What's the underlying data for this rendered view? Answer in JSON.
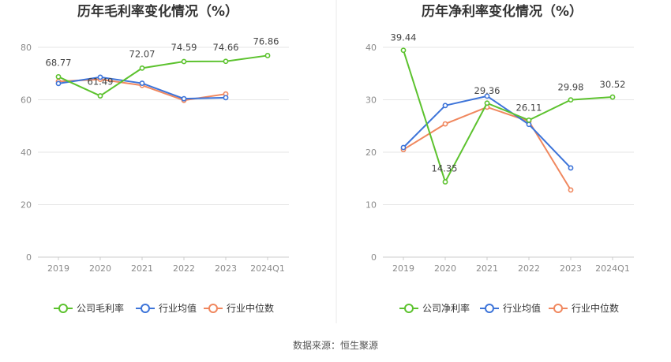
{
  "colors": {
    "company": "#5CC22E",
    "industry_avg": "#3D74D9",
    "industry_median": "#F0875E",
    "grid": "#E6E6E6",
    "axis": "#CCCCCC",
    "divider": "#E8E8E8"
  },
  "legend": {
    "company_gross": "公司毛利率",
    "company_net": "公司净利率",
    "industry_avg": "行业均值",
    "industry_median": "行业中位数"
  },
  "source": "数据来源：恒生聚源",
  "chart_data": [
    {
      "type": "line",
      "title": "历年毛利率变化情况（%）",
      "categories": [
        "2019",
        "2020",
        "2021",
        "2022",
        "2023",
        "2024Q1"
      ],
      "ylim": [
        0,
        80
      ],
      "yticks": [
        0,
        20,
        40,
        60,
        80
      ],
      "grid": true,
      "legend_position": "bottom",
      "series": [
        {
          "name": "公司毛利率",
          "key": "company",
          "values": [
            68.77,
            61.49,
            72.07,
            74.59,
            74.66,
            76.86
          ],
          "labeled": true
        },
        {
          "name": "行业均值",
          "key": "industry_avg",
          "values": [
            66.2,
            68.6,
            66.3,
            60.4,
            60.8,
            null
          ],
          "labeled": false
        },
        {
          "name": "行业中位数",
          "key": "industry_median",
          "values": [
            67.0,
            67.8,
            65.5,
            59.8,
            62.2,
            null
          ],
          "labeled": false
        }
      ]
    },
    {
      "type": "line",
      "title": "历年净利率变化情况（%）",
      "categories": [
        "2019",
        "2020",
        "2021",
        "2022",
        "2023",
        "2024Q1"
      ],
      "ylim": [
        0,
        40
      ],
      "yticks": [
        0,
        10,
        20,
        30,
        40
      ],
      "grid": true,
      "legend_position": "bottom",
      "series": [
        {
          "name": "公司净利率",
          "key": "company",
          "values": [
            39.44,
            14.35,
            29.36,
            26.11,
            29.98,
            30.52
          ],
          "labeled": true
        },
        {
          "name": "行业均值",
          "key": "industry_avg",
          "values": [
            20.9,
            28.9,
            30.7,
            25.3,
            17.0,
            null
          ],
          "labeled": false
        },
        {
          "name": "行业中位数",
          "key": "industry_median",
          "values": [
            20.5,
            25.4,
            28.6,
            25.9,
            12.8,
            null
          ],
          "labeled": false
        }
      ]
    }
  ]
}
